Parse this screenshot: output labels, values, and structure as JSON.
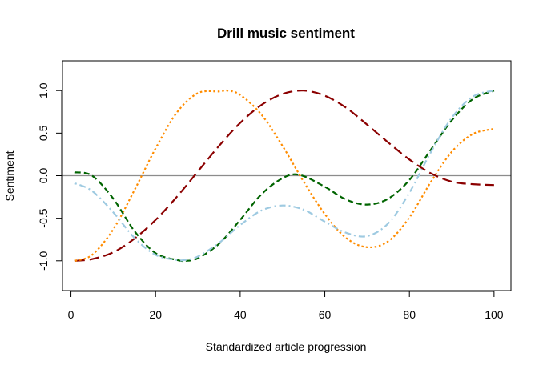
{
  "chart_data": {
    "type": "line",
    "title": "Drill music sentiment",
    "xlabel": "Standardized article progression",
    "ylabel": "Sentiment",
    "xlim": [
      -2,
      104
    ],
    "ylim": [
      -1.35,
      1.35
    ],
    "x_ticks": [
      0,
      20,
      40,
      60,
      80,
      100
    ],
    "y_ticks": [
      -1.0,
      -0.5,
      0.0,
      0.5,
      1.0
    ],
    "y_tick_labels": [
      "-1.0",
      "-0.5",
      "0.0",
      "0.5",
      "1.0"
    ],
    "reference_line": {
      "y": 0,
      "color": "#8c8c8c"
    },
    "grid": false,
    "legend": "none",
    "series": [
      {
        "color": "#8b0000",
        "style": "longdash",
        "x": [
          1,
          5,
          10,
          15,
          20,
          25,
          30,
          35,
          40,
          45,
          50,
          55,
          60,
          65,
          70,
          75,
          80,
          85,
          90,
          95,
          100
        ],
        "y": [
          -1.0,
          -0.98,
          -0.9,
          -0.74,
          -0.52,
          -0.25,
          0.05,
          0.35,
          0.62,
          0.83,
          0.96,
          1.0,
          0.94,
          0.8,
          0.6,
          0.39,
          0.19,
          0.03,
          -0.07,
          -0.1,
          -0.11
        ]
      },
      {
        "color": "#ff8c00",
        "style": "dotted",
        "x": [
          1,
          5,
          10,
          15,
          20,
          25,
          30,
          35,
          37,
          40,
          45,
          50,
          55,
          60,
          65,
          70,
          75,
          80,
          85,
          90,
          95,
          100
        ],
        "y": [
          -1.0,
          -0.93,
          -0.63,
          -0.17,
          0.32,
          0.74,
          0.97,
          0.99,
          1.0,
          0.95,
          0.72,
          0.35,
          -0.07,
          -0.45,
          -0.73,
          -0.84,
          -0.77,
          -0.49,
          -0.08,
          0.28,
          0.49,
          0.55
        ]
      },
      {
        "color": "#006400",
        "style": "dashed",
        "x": [
          1,
          5,
          10,
          15,
          20,
          25,
          27,
          30,
          35,
          40,
          45,
          50,
          54,
          60,
          65,
          70,
          75,
          80,
          85,
          90,
          95,
          100
        ],
        "y": [
          0.04,
          0.0,
          -0.27,
          -0.65,
          -0.91,
          -0.99,
          -1.0,
          -0.97,
          -0.8,
          -0.52,
          -0.22,
          -0.03,
          0.01,
          -0.13,
          -0.28,
          -0.34,
          -0.27,
          -0.05,
          0.3,
          0.65,
          0.9,
          1.0
        ]
      },
      {
        "color": "#9ecae1",
        "style": "dashdot",
        "x": [
          1,
          5,
          10,
          15,
          20,
          25,
          27,
          30,
          35,
          40,
          45,
          50,
          55,
          60,
          65,
          70,
          75,
          80,
          85,
          90,
          95,
          100
        ],
        "y": [
          -0.09,
          -0.18,
          -0.43,
          -0.73,
          -0.93,
          -0.99,
          -0.99,
          -0.95,
          -0.79,
          -0.58,
          -0.41,
          -0.35,
          -0.4,
          -0.54,
          -0.67,
          -0.71,
          -0.56,
          -0.2,
          0.27,
          0.68,
          0.93,
          1.0
        ]
      }
    ]
  }
}
